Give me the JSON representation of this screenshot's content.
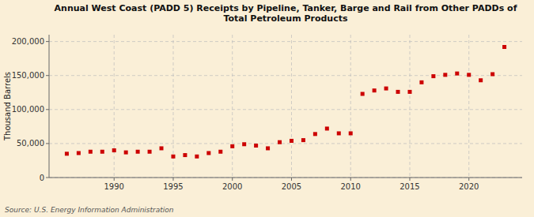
{
  "chart_data": {
    "type": "scatter",
    "title": "Annual West Coast (PADD 5) Receipts by Pipeline, Tanker, Barge and Rail from Other PADDs of\nTotal Petroleum Products",
    "ylabel": "Thousand Barrels",
    "source": "Source: U.S. Energy Information Administration",
    "x": [
      1986,
      1987,
      1988,
      1989,
      1990,
      1991,
      1992,
      1993,
      1994,
      1995,
      1996,
      1997,
      1998,
      1999,
      2000,
      2001,
      2002,
      2003,
      2004,
      2005,
      2006,
      2007,
      2008,
      2009,
      2010,
      2011,
      2012,
      2013,
      2014,
      2015,
      2016,
      2017,
      2018,
      2019,
      2020,
      2021,
      2022,
      2023
    ],
    "values": [
      35000,
      36000,
      38000,
      38000,
      40000,
      37000,
      38000,
      38000,
      43000,
      31000,
      33000,
      31000,
      36000,
      38000,
      46000,
      49000,
      47000,
      43000,
      52000,
      54000,
      55000,
      64000,
      72000,
      65000,
      65000,
      123000,
      128000,
      131000,
      126000,
      126000,
      140000,
      149000,
      151000,
      153000,
      151000,
      143000,
      152000,
      192000
    ],
    "color": "#cc0000",
    "marker": "square",
    "xlim": [
      1984.5,
      2024.5
    ],
    "ylim": [
      0,
      210000
    ],
    "xticks": [
      1990,
      1995,
      2000,
      2005,
      2010,
      2015,
      2020
    ],
    "yticks": [
      0,
      {
        "value": 50000,
        "label": "50,000"
      },
      {
        "value": 100000,
        "label": "100,000"
      },
      {
        "value": 150000,
        "label": "150,000"
      },
      {
        "value": 200000,
        "label": "200,000"
      }
    ],
    "grid": true
  }
}
